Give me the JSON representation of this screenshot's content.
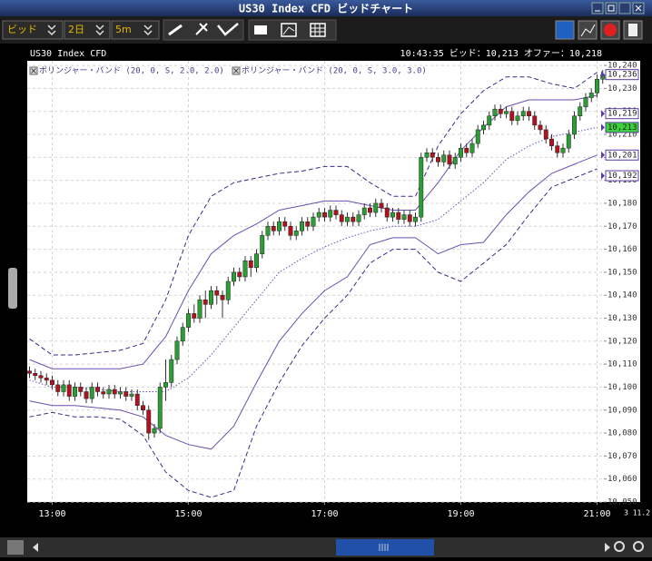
{
  "ui": {
    "window_title": "US30 Index CFD ビッドチャート",
    "selectors": [
      "ビッド",
      "2日",
      "5m"
    ],
    "corner_text": "3 11.2"
  },
  "chart_data": {
    "type": "candlestick",
    "title": "US30 Index CFD",
    "info": "10:43:35  ビッド：10,213  オファー：10,218",
    "x": [
      760,
      765,
      770,
      775,
      780,
      785,
      790,
      795,
      800,
      805,
      810,
      815,
      820,
      825,
      830,
      835,
      840,
      845,
      850,
      855,
      860,
      865,
      870,
      875,
      880,
      885,
      890,
      895,
      900,
      905,
      910,
      915,
      920,
      925,
      930,
      935,
      940,
      945,
      950,
      955,
      960,
      965,
      970,
      975,
      980,
      985,
      990,
      995,
      1000,
      1005,
      1010,
      1015,
      1020,
      1025,
      1030,
      1035,
      1040,
      1045,
      1050,
      1055,
      1060,
      1065,
      1070,
      1075,
      1080,
      1085,
      1090,
      1095,
      1100,
      1105,
      1110,
      1115,
      1120,
      1125,
      1130,
      1135,
      1140,
      1145,
      1150,
      1155,
      1160,
      1165,
      1170,
      1175,
      1180,
      1185,
      1190,
      1195,
      1200,
      1205,
      1210,
      1215,
      1220,
      1225,
      1230,
      1235,
      1240,
      1245,
      1250,
      1255,
      1260,
      1265
    ],
    "open": [
      10107,
      10106,
      10105,
      10104,
      10103,
      10101,
      10098,
      10101,
      10096,
      10100,
      10098,
      10095,
      10100,
      10098,
      10097,
      10099,
      10097,
      10098,
      10096,
      10097,
      10092,
      10090,
      10080,
      10082,
      10100,
      10102,
      10112,
      10120,
      10126,
      10132,
      10130,
      10138,
      10136,
      10142,
      10140,
      10138,
      10146,
      10150,
      10148,
      10155,
      10152,
      10158,
      10166,
      10170,
      10168,
      10172,
      10170,
      10166,
      10168,
      10172,
      10170,
      10174,
      10176,
      10174,
      10177,
      10175,
      10172,
      10174,
      10172,
      10175,
      10178,
      10176,
      10180,
      10178,
      10174,
      10176,
      10173,
      10175,
      10172,
      10174,
      10200,
      10202,
      10200,
      10198,
      10201,
      10197,
      10200,
      10204,
      10202,
      10206,
      10212,
      10214,
      10218,
      10221,
      10219,
      10220,
      10216,
      10218,
      10220,
      10218,
      10214,
      10212,
      10208,
      10205,
      10202,
      10204,
      10210,
      10218,
      10222,
      10226,
      10228,
      10234
    ],
    "high": [
      10109,
      10108,
      10107,
      10106,
      10105,
      10103,
      10103,
      10103,
      10102,
      10102,
      10100,
      10102,
      10102,
      10100,
      10101,
      10101,
      10100,
      10100,
      10099,
      10099,
      10094,
      10092,
      10084,
      10102,
      10112,
      10114,
      10122,
      10128,
      10134,
      10136,
      10140,
      10142,
      10144,
      10144,
      10142,
      10148,
      10152,
      10152,
      10157,
      10157,
      10160,
      10168,
      10172,
      10172,
      10174,
      10174,
      10172,
      10170,
      10174,
      10174,
      10176,
      10178,
      10178,
      10179,
      10179,
      10177,
      10176,
      10176,
      10177,
      10180,
      10180,
      10182,
      10182,
      10180,
      10178,
      10178,
      10177,
      10177,
      10176,
      10202,
      10204,
      10204,
      10202,
      10203,
      10203,
      10202,
      10206,
      10206,
      10208,
      10214,
      10216,
      10220,
      10223,
      10223,
      10222,
      10222,
      10220,
      10222,
      10222,
      10220,
      10216,
      10214,
      10210,
      10207,
      10206,
      10212,
      10220,
      10224,
      10228,
      10230,
      10236,
      10238
    ],
    "low": [
      10104,
      10103,
      10102,
      10101,
      10099,
      10096,
      10096,
      10094,
      10094,
      10096,
      10093,
      10093,
      10096,
      10095,
      10095,
      10095,
      10095,
      10094,
      10094,
      10090,
      10088,
      10077,
      10078,
      10080,
      10094,
      10100,
      10110,
      10118,
      10124,
      10128,
      10128,
      10130,
      10134,
      10136,
      10130,
      10136,
      10144,
      10146,
      10146,
      10148,
      10150,
      10156,
      10164,
      10166,
      10166,
      10168,
      10164,
      10164,
      10166,
      10168,
      10168,
      10172,
      10172,
      10172,
      10173,
      10170,
      10170,
      10170,
      10170,
      10173,
      10174,
      10174,
      10176,
      10172,
      10172,
      10171,
      10171,
      10170,
      10170,
      10172,
      10198,
      10198,
      10196,
      10196,
      10195,
      10195,
      10198,
      10200,
      10200,
      10204,
      10210,
      10212,
      10216,
      10217,
      10217,
      10214,
      10214,
      10216,
      10216,
      10212,
      10210,
      10206,
      10203,
      10200,
      10200,
      10202,
      10208,
      10216,
      10220,
      10224,
      10226,
      10232
    ],
    "close": [
      10106,
      10105,
      10104,
      10103,
      10101,
      10098,
      10101,
      10096,
      10100,
      10098,
      10095,
      10100,
      10098,
      10097,
      10099,
      10097,
      10098,
      10096,
      10097,
      10092,
      10090,
      10080,
      10082,
      10100,
      10102,
      10112,
      10120,
      10126,
      10132,
      10130,
      10138,
      10136,
      10142,
      10140,
      10138,
      10146,
      10150,
      10148,
      10155,
      10152,
      10158,
      10166,
      10170,
      10168,
      10172,
      10170,
      10166,
      10168,
      10172,
      10170,
      10174,
      10176,
      10174,
      10177,
      10175,
      10172,
      10174,
      10172,
      10175,
      10178,
      10176,
      10180,
      10178,
      10174,
      10176,
      10173,
      10175,
      10172,
      10174,
      10200,
      10202,
      10200,
      10198,
      10201,
      10197,
      10200,
      10204,
      10202,
      10206,
      10212,
      10214,
      10218,
      10221,
      10219,
      10220,
      10216,
      10218,
      10220,
      10218,
      10214,
      10212,
      10208,
      10205,
      10202,
      10204,
      10210,
      10218,
      10222,
      10226,
      10228,
      10234,
      10236
    ],
    "up_color": "#2a9e34",
    "down_color": "#b0121e",
    "xlim": [
      758,
      1266
    ],
    "xticks": [
      {
        "value": 780,
        "label": "13:00"
      },
      {
        "value": 900,
        "label": "15:00"
      },
      {
        "value": 1020,
        "label": "17:00"
      },
      {
        "value": 1140,
        "label": "19:00"
      },
      {
        "value": 1260,
        "label": "21:00"
      }
    ],
    "ylim": [
      10050,
      10242
    ],
    "yticks": [
      {
        "value": 10050,
        "label": "10,050"
      },
      {
        "value": 10060,
        "label": "10,060"
      },
      {
        "value": 10070,
        "label": "10,070"
      },
      {
        "value": 10080,
        "label": "10,080"
      },
      {
        "value": 10090,
        "label": "10,090"
      },
      {
        "value": 10100,
        "label": "10,100"
      },
      {
        "value": 10110,
        "label": "10,110"
      },
      {
        "value": 10120,
        "label": "10,120"
      },
      {
        "value": 10130,
        "label": "10,130"
      },
      {
        "value": 10140,
        "label": "10,140"
      },
      {
        "value": 10150,
        "label": "10,150"
      },
      {
        "value": 10160,
        "label": "10,160"
      },
      {
        "value": 10170,
        "label": "10,170"
      },
      {
        "value": 10180,
        "label": "10,180"
      },
      {
        "value": 10190,
        "label": "10,190"
      },
      {
        "value": 10200,
        "label": "10,200"
      },
      {
        "value": 10210,
        "label": "10,210"
      },
      {
        "value": 10220,
        "label": "10,220"
      },
      {
        "value": 10230,
        "label": "10,230"
      },
      {
        "value": 10240,
        "label": "10,240"
      }
    ],
    "grid": true,
    "bands": {
      "x": [
        760,
        780,
        800,
        820,
        840,
        860,
        880,
        900,
        920,
        940,
        960,
        980,
        1000,
        1020,
        1040,
        1060,
        1080,
        1100,
        1120,
        1140,
        1160,
        1180,
        1200,
        1220,
        1240,
        1260
      ],
      "series": [
        {
          "name": "ボリンジャー・バンド (20, 0, S, 2.0, 2.0)",
          "color": "#6a4fb0",
          "style": "solid",
          "middle_style": "dotted",
          "upper": [
            10112,
            10108,
            10108,
            10108,
            10108,
            10110,
            10122,
            10142,
            10158,
            10166,
            10171,
            10177,
            10179,
            10181,
            10181,
            10179,
            10177,
            10177,
            10189,
            10203,
            10213,
            10222,
            10225,
            10225,
            10225,
            10227
          ],
          "middle": [
            10103,
            10100,
            10100,
            10099,
            10098,
            10098,
            10098,
            10104,
            10114,
            10126,
            10138,
            10150,
            10156,
            10161,
            10165,
            10168,
            10170,
            10170,
            10173,
            10181,
            10189,
            10199,
            10205,
            10209,
            10211,
            10213
          ],
          "lower": [
            10094,
            10092,
            10092,
            10091,
            10090,
            10087,
            10079,
            10075,
            10073,
            10083,
            10102,
            10120,
            10132,
            10142,
            10148,
            10162,
            10165,
            10165,
            10158,
            10162,
            10163,
            10175,
            10185,
            10193,
            10197,
            10201
          ]
        },
        {
          "name": "ボリンジャー・バンド (20, 0, S, 3.0, 3.0)",
          "color": "#3c2a88",
          "style": "dashed",
          "upper": [
            10121,
            10114,
            10114,
            10115,
            10116,
            10119,
            10138,
            10166,
            10183,
            10189,
            10191,
            10193,
            10194,
            10196,
            10196,
            10189,
            10183,
            10183,
            10205,
            10219,
            10229,
            10235,
            10235,
            10232,
            10230,
            10237
          ],
          "lower": [
            10087,
            10089,
            10087,
            10087,
            10086,
            10079,
            10063,
            10055,
            10052,
            10055,
            10083,
            10102,
            10118,
            10130,
            10140,
            10154,
            10160,
            10160,
            10150,
            10146,
            10154,
            10162,
            10175,
            10187,
            10191,
            10195
          ]
        }
      ]
    },
    "price_tags": [
      {
        "value": 10236,
        "label": "10,236",
        "color": "#ffffff"
      },
      {
        "value": 10219,
        "label": "10,219",
        "color": "#ffffff"
      },
      {
        "value": 10213,
        "label": "10,213",
        "color": "#3cd23c"
      },
      {
        "value": 10201,
        "label": "10,201",
        "color": "#ffffff"
      },
      {
        "value": 10192,
        "label": "10,192",
        "color": "#ffffff"
      }
    ]
  }
}
